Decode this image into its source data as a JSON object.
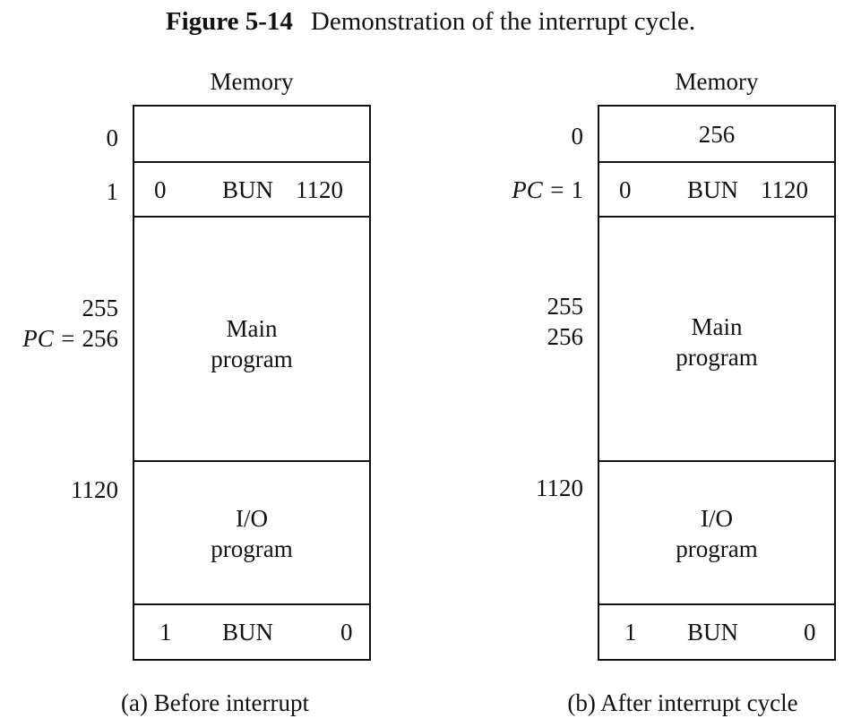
{
  "caption": {
    "figure_number": "Figure 5-14",
    "text": "Demonstration of the interrupt cycle."
  },
  "diagrams": [
    {
      "memory_label": "Memory",
      "cells": {
        "addr0": {
          "content": ""
        },
        "addr1": {
          "i_bit": "0",
          "opcode": "BUN",
          "address": "1120"
        },
        "main": {
          "line1": "Main",
          "line2": "program"
        },
        "io": {
          "line1": "I/O",
          "line2": "program"
        },
        "return": {
          "i_bit": "1",
          "opcode": "BUN",
          "address": "0"
        }
      },
      "addresses": {
        "a0": "0",
        "a1": "1",
        "a255": "255",
        "a256": "256",
        "a256_prefix": "PC = ",
        "a1120": "1120"
      },
      "caption": "(a) Before interrupt"
    },
    {
      "memory_label": "Memory",
      "cells": {
        "addr0": {
          "content": "256"
        },
        "addr1": {
          "i_bit": "0",
          "opcode": "BUN",
          "address": "1120"
        },
        "main": {
          "line1": "Main",
          "line2": "program"
        },
        "io": {
          "line1": "I/O",
          "line2": "program"
        },
        "return": {
          "i_bit": "1",
          "opcode": "BUN",
          "address": "0"
        }
      },
      "addresses": {
        "a0": "0",
        "a1": "1",
        "a1_prefix": "PC = ",
        "a255": "255",
        "a256": "256",
        "a1120": "1120"
      },
      "caption": "(b) After interrupt cycle"
    }
  ]
}
